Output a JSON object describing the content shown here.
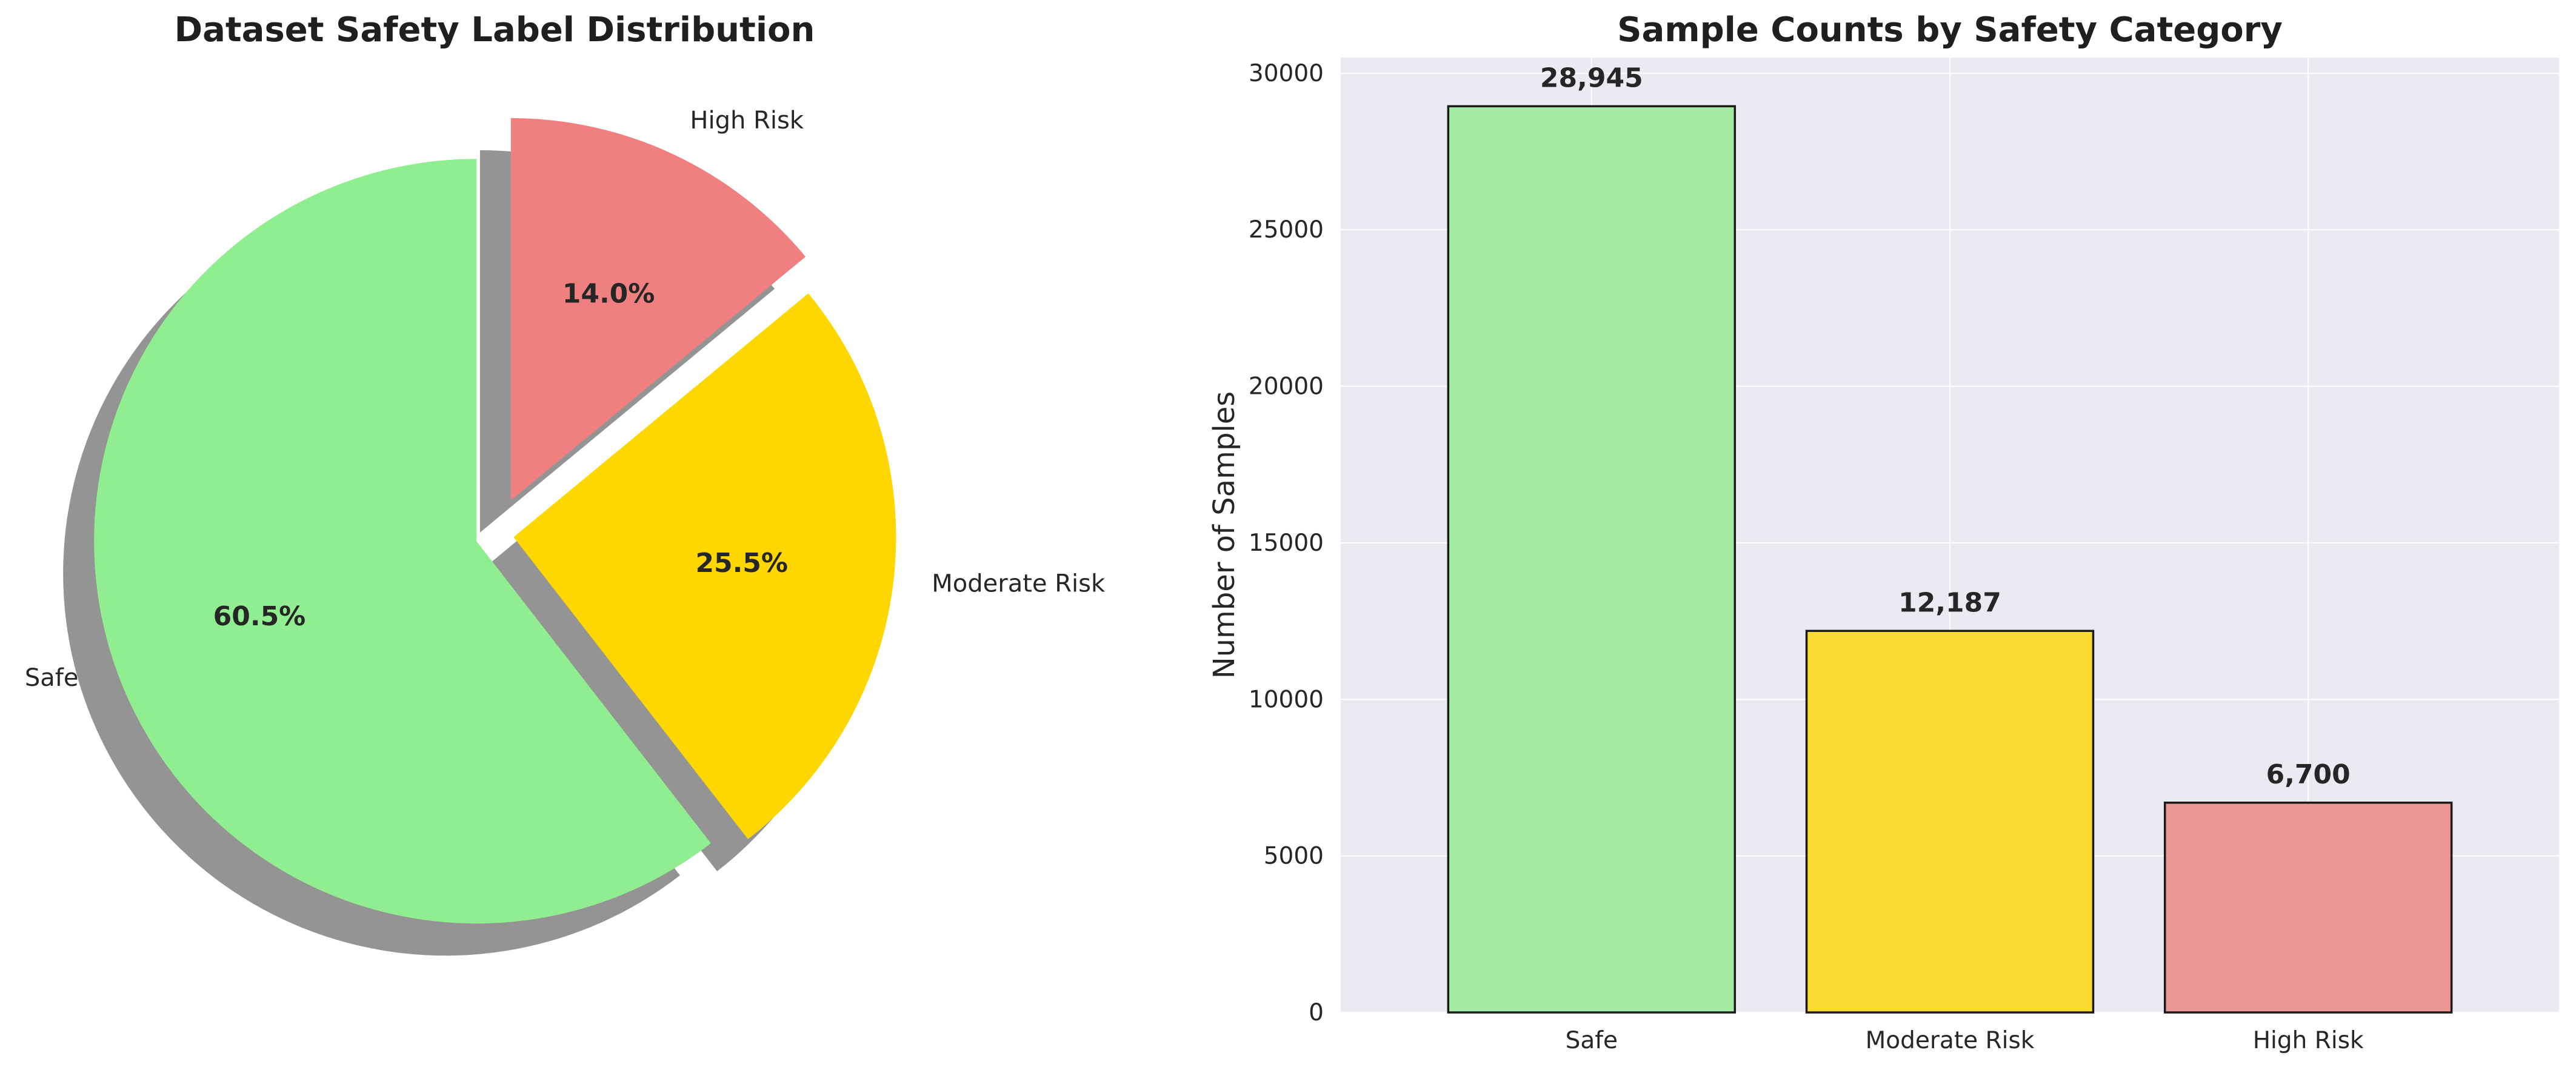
{
  "chart_data": [
    {
      "type": "pie",
      "title": "Dataset Safety Label Distribution",
      "labels": [
        "Safe",
        "Moderate Risk",
        "High Risk"
      ],
      "values": [
        60.5,
        25.5,
        14.0
      ],
      "percent_labels": [
        "60.5%",
        "25.5%",
        "14.0%"
      ],
      "colors": [
        "#90ee90",
        "#ffd700",
        "#f08080"
      ],
      "explode": [
        0.05,
        0.05,
        0.1
      ],
      "start_angle_deg": 90,
      "shadow": true
    },
    {
      "type": "bar",
      "title": "Sample Counts by Safety Category",
      "categories": [
        "Safe",
        "Moderate Risk",
        "High Risk"
      ],
      "values": [
        28945,
        12187,
        6700
      ],
      "value_labels": [
        "28,945",
        "12,187",
        "6,700"
      ],
      "colors": [
        "#a3eba3",
        "#f8da30",
        "#ec9595"
      ],
      "ylabel": "Number of Samples",
      "xlabel": "",
      "ylim": [
        0,
        30500
      ],
      "yticks": [
        0,
        5000,
        10000,
        15000,
        20000,
        25000,
        30000
      ],
      "grid": true
    }
  ]
}
